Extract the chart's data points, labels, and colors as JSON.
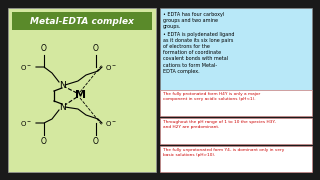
{
  "bg_color": "#1a1a1a",
  "left_panel_bg": "#d4e8a0",
  "title_box_color": "#5a8a2a",
  "title_text": "Metal-EDTA complex",
  "title_text_color": "#ffffff",
  "right_top_bg": "#b8e8f8",
  "right_top_bullets": [
    "EDTA has four carboxyl\ngroups and two amine\ngroups.",
    "EDTA is polydenated ligand\nas it donate its six lone pairs\nof electrons for the\nformation of coordinate\ncovalent bonds with metal\ncations to form Metal-\nEDTA complex."
  ],
  "bottom_lines": [
    {
      "color": "#cc0000",
      "text": "The fully protonated form H4Y is only a major\ncomponent in very acidic solutions (pH<1)."
    },
    {
      "color": "#cc0000",
      "text": "Throughout the pH range of 1 to 10 the species H3Y-\nand H2Y are predominant."
    },
    {
      "color": "#cc0000",
      "text": "The fully unprotonated form Y4- is dominant only in very\nbasic solutions (pH>10)."
    }
  ]
}
